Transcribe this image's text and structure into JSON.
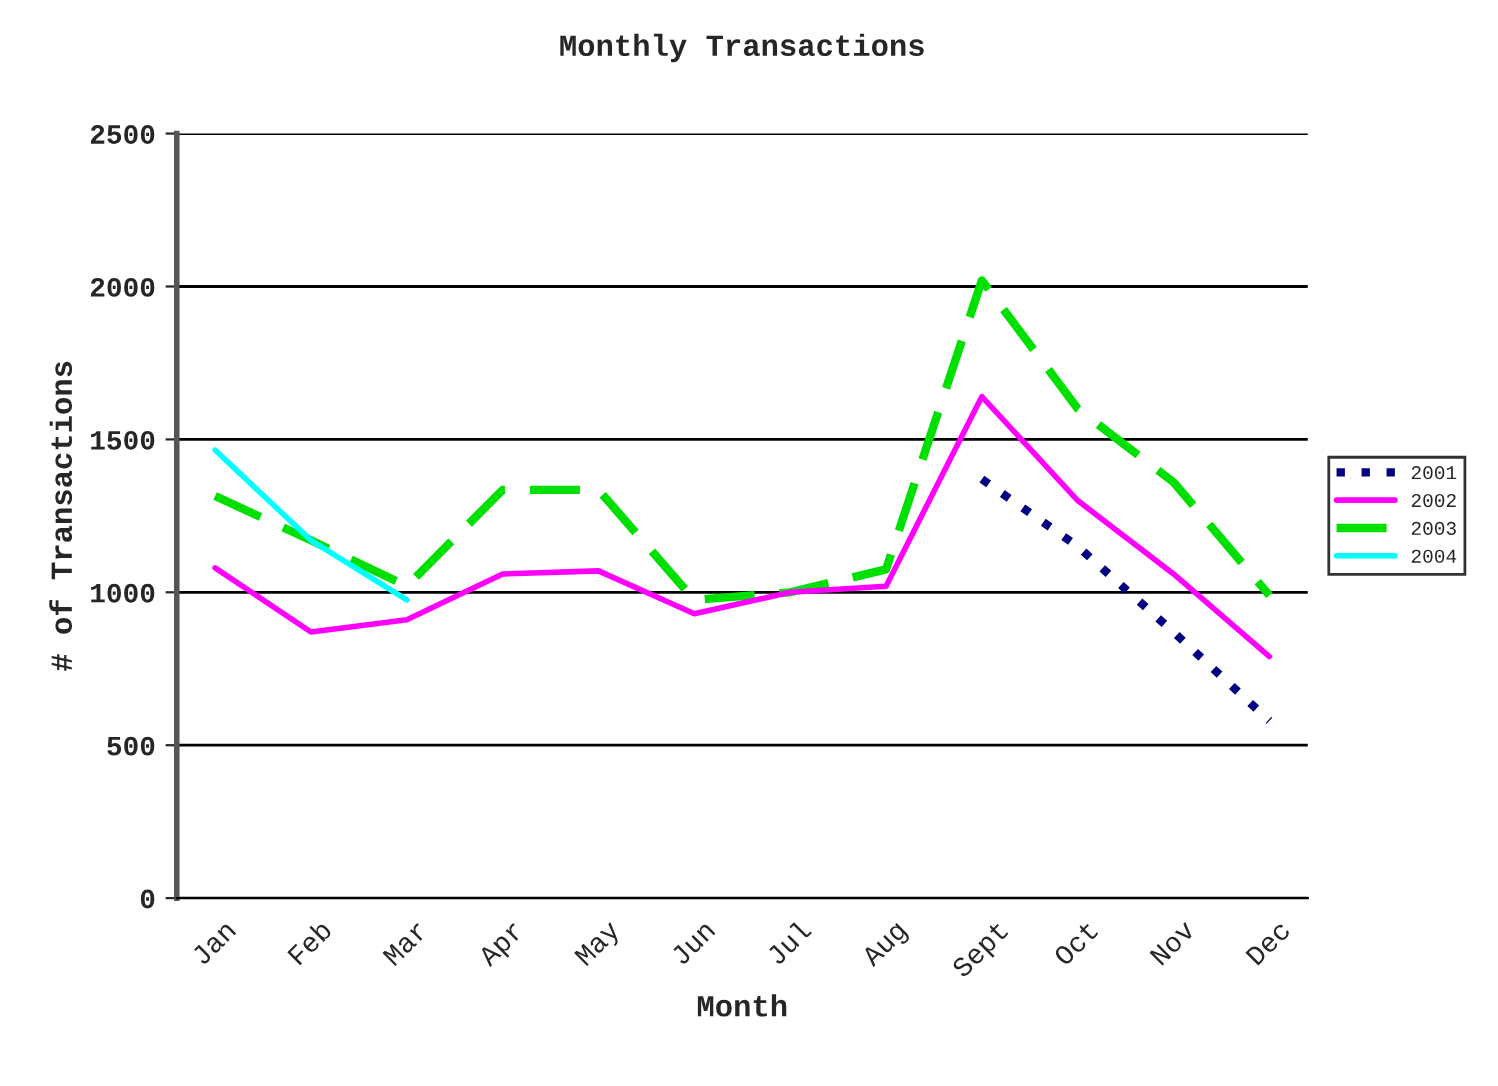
{
  "chart_data": {
    "type": "line",
    "title": "Monthly Transactions",
    "xlabel": "Month",
    "ylabel": "# of Transactions",
    "categories": [
      "Jan",
      "Feb",
      "Mar",
      "Apr",
      "May",
      "Jun",
      "Jul",
      "Aug",
      "Sept",
      "Oct",
      "Nov",
      "Dec"
    ],
    "series": [
      {
        "name": "2001",
        "color": "#000080",
        "line_style": "dotted",
        "values": [
          null,
          null,
          null,
          null,
          null,
          null,
          null,
          null,
          1370,
          1150,
          870,
          580
        ]
      },
      {
        "name": "2002",
        "color": "#ff00ff",
        "line_style": "solid",
        "values": [
          1080,
          870,
          910,
          1060,
          1070,
          930,
          1000,
          1020,
          1640,
          1300,
          1060,
          790
        ]
      },
      {
        "name": "2003",
        "color": "#00e000",
        "line_style": "dashed",
        "values": [
          1315,
          1170,
          1020,
          1335,
          1335,
          975,
          1000,
          1075,
          2020,
          1600,
          1360,
          990
        ]
      },
      {
        "name": "2004",
        "color": "#00ffff",
        "line_style": "solid",
        "values": [
          1465,
          1170,
          975,
          null,
          null,
          null,
          null,
          null,
          null,
          null,
          null,
          null
        ]
      }
    ],
    "ylim": [
      0,
      2500
    ],
    "yticks": [
      0,
      500,
      1000,
      1500,
      2000,
      2500
    ],
    "grid": "y",
    "legend": "right",
    "marker": "none"
  }
}
